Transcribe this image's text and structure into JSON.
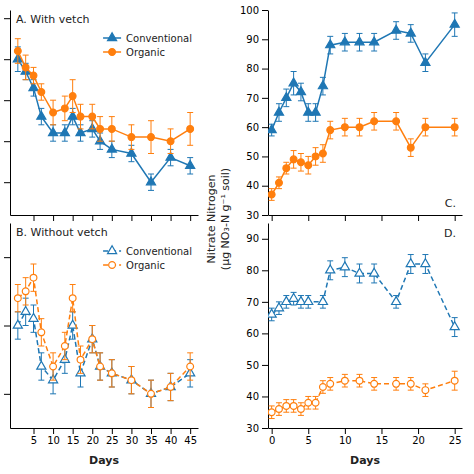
{
  "chart_data": [
    {
      "type": "line",
      "title": "A.  With vetch",
      "legend": "upper right",
      "tick_labels": false,
      "xlim": [
        -1,
        47
      ],
      "xticks": [
        5,
        10,
        15,
        20,
        25,
        30,
        35,
        40,
        45
      ],
      "ylim": [
        42,
        92
      ],
      "yticks": [
        50,
        60,
        70,
        80,
        90
      ],
      "series": [
        {
          "name": "Conventional",
          "marker": "triangle",
          "line_style": "solid",
          "x": [
            1,
            3,
            5,
            7,
            10,
            13,
            15,
            17,
            20,
            22,
            25,
            30,
            35,
            40,
            45
          ],
          "values": [
            80,
            77,
            73,
            66,
            62,
            62,
            66,
            62,
            63,
            60,
            58,
            57,
            50,
            56,
            54
          ],
          "errors": [
            3,
            2,
            2,
            2,
            2,
            2,
            2,
            2,
            2,
            2,
            2,
            2,
            2,
            2,
            2
          ]
        },
        {
          "name": "Organic",
          "marker": "circle",
          "line_style": "solid",
          "x": [
            1,
            3,
            5,
            7,
            10,
            13,
            15,
            17,
            20,
            22,
            25,
            30,
            35,
            40,
            45
          ],
          "values": [
            82,
            78,
            76,
            72,
            67,
            68,
            71,
            66,
            66,
            63,
            63,
            61,
            61,
            60,
            63
          ],
          "errors": [
            3,
            3,
            2,
            2,
            3,
            3,
            4,
            3,
            3,
            3,
            3,
            3,
            4,
            3,
            4
          ]
        }
      ]
    },
    {
      "type": "line",
      "title": "B.  Without vetch",
      "legend": "upper right",
      "tick_labels": "x",
      "xlabel": "Days",
      "xlim": [
        -1,
        47
      ],
      "xticks": [
        5,
        10,
        15,
        20,
        25,
        30,
        35,
        40,
        45
      ],
      "ylim": [
        35,
        65
      ],
      "yticks": [
        40,
        50,
        60
      ],
      "series": [
        {
          "name": "Conventional",
          "marker": "triangle-open",
          "line_style": "dashed",
          "x": [
            1,
            3,
            5,
            7,
            10,
            13,
            15,
            17,
            20,
            22,
            25,
            30,
            35,
            40,
            45
          ],
          "values": [
            50,
            52,
            51,
            44,
            42,
            45,
            50,
            43,
            48,
            44,
            43,
            42,
            40,
            41,
            43
          ],
          "errors": [
            2,
            2,
            2,
            2,
            2,
            2,
            2,
            2,
            2,
            2,
            2,
            2,
            2,
            2,
            2
          ]
        },
        {
          "name": "Organic",
          "marker": "circle-open",
          "line_style": "dashed",
          "x": [
            1,
            3,
            5,
            7,
            10,
            13,
            15,
            17,
            20,
            22,
            25,
            30,
            35,
            40,
            45
          ],
          "values": [
            54,
            55,
            57,
            49,
            44,
            47,
            54,
            45,
            48,
            44,
            43,
            42,
            40,
            41,
            44
          ],
          "errors": [
            2,
            2,
            2,
            2,
            2,
            2,
            2,
            2,
            2,
            2,
            2,
            2,
            2,
            2,
            2
          ]
        }
      ]
    },
    {
      "type": "line",
      "title": "C.",
      "tick_labels": "y",
      "ylabel": [
        "Nitrate Nitrogen",
        "(μg NO₃-N g⁻¹ soil)"
      ],
      "xlim": [
        -0.5,
        26
      ],
      "xticks": [
        0,
        5,
        10,
        15,
        20,
        25
      ],
      "ylim": [
        30,
        100
      ],
      "yticks": [
        30,
        40,
        50,
        60,
        70,
        80,
        90,
        100
      ],
      "series": [
        {
          "marker": "triangle",
          "line_style": "solid",
          "x": [
            0,
            1,
            2,
            3,
            4,
            5,
            6,
            7,
            8,
            10,
            12,
            14,
            17,
            19,
            21,
            25
          ],
          "values": [
            59,
            65,
            70,
            75,
            72,
            65,
            65,
            74,
            88,
            89,
            89,
            89,
            93,
            92,
            82,
            95
          ],
          "errors": [
            2,
            3,
            3,
            4,
            3,
            3,
            3,
            3,
            3,
            3,
            3,
            3,
            3,
            3,
            3,
            4
          ]
        },
        {
          "marker": "circle",
          "line_style": "solid",
          "x": [
            0,
            1,
            2,
            3,
            4,
            5,
            6,
            7,
            8,
            10,
            12,
            14,
            17,
            19,
            21,
            25
          ],
          "values": [
            37,
            41,
            46,
            49,
            48,
            47,
            50,
            51,
            59,
            60,
            60,
            62,
            62,
            53,
            60,
            60
          ],
          "errors": [
            2,
            2,
            2,
            3,
            3,
            3,
            3,
            3,
            3,
            3,
            3,
            3,
            3,
            3,
            3,
            3
          ]
        }
      ]
    },
    {
      "type": "line",
      "title": "D.",
      "xlabel": "Days",
      "xlim": [
        -0.5,
        26
      ],
      "xticks": [
        0,
        5,
        10,
        15,
        20,
        25
      ],
      "ylim": [
        30,
        95
      ],
      "yticks": [
        30,
        40,
        50,
        60,
        70,
        80,
        90
      ],
      "series": [
        {
          "marker": "triangle-open",
          "line_style": "dashed",
          "x": [
            0,
            1,
            2,
            3,
            4,
            5,
            7,
            8,
            10,
            12,
            14,
            17,
            19,
            21,
            25
          ],
          "values": [
            66,
            68,
            70,
            71,
            70,
            70,
            70,
            80,
            81,
            79,
            79,
            70,
            82,
            82,
            62
          ],
          "errors": [
            2,
            2,
            2,
            2,
            2,
            2,
            2,
            3,
            3,
            3,
            3,
            2,
            3,
            3,
            3
          ]
        },
        {
          "marker": "circle-open",
          "line_style": "dashed",
          "x": [
            0,
            1,
            2,
            3,
            4,
            5,
            6,
            7,
            8,
            10,
            12,
            14,
            17,
            19,
            21,
            25
          ],
          "values": [
            35,
            36,
            37,
            37,
            36,
            38,
            38,
            43,
            44,
            45,
            45,
            44,
            44,
            44,
            42,
            45
          ],
          "errors": [
            2,
            2,
            2,
            2,
            2,
            2,
            2,
            2,
            2,
            2,
            2,
            2,
            2,
            2,
            2,
            3
          ]
        }
      ]
    }
  ]
}
